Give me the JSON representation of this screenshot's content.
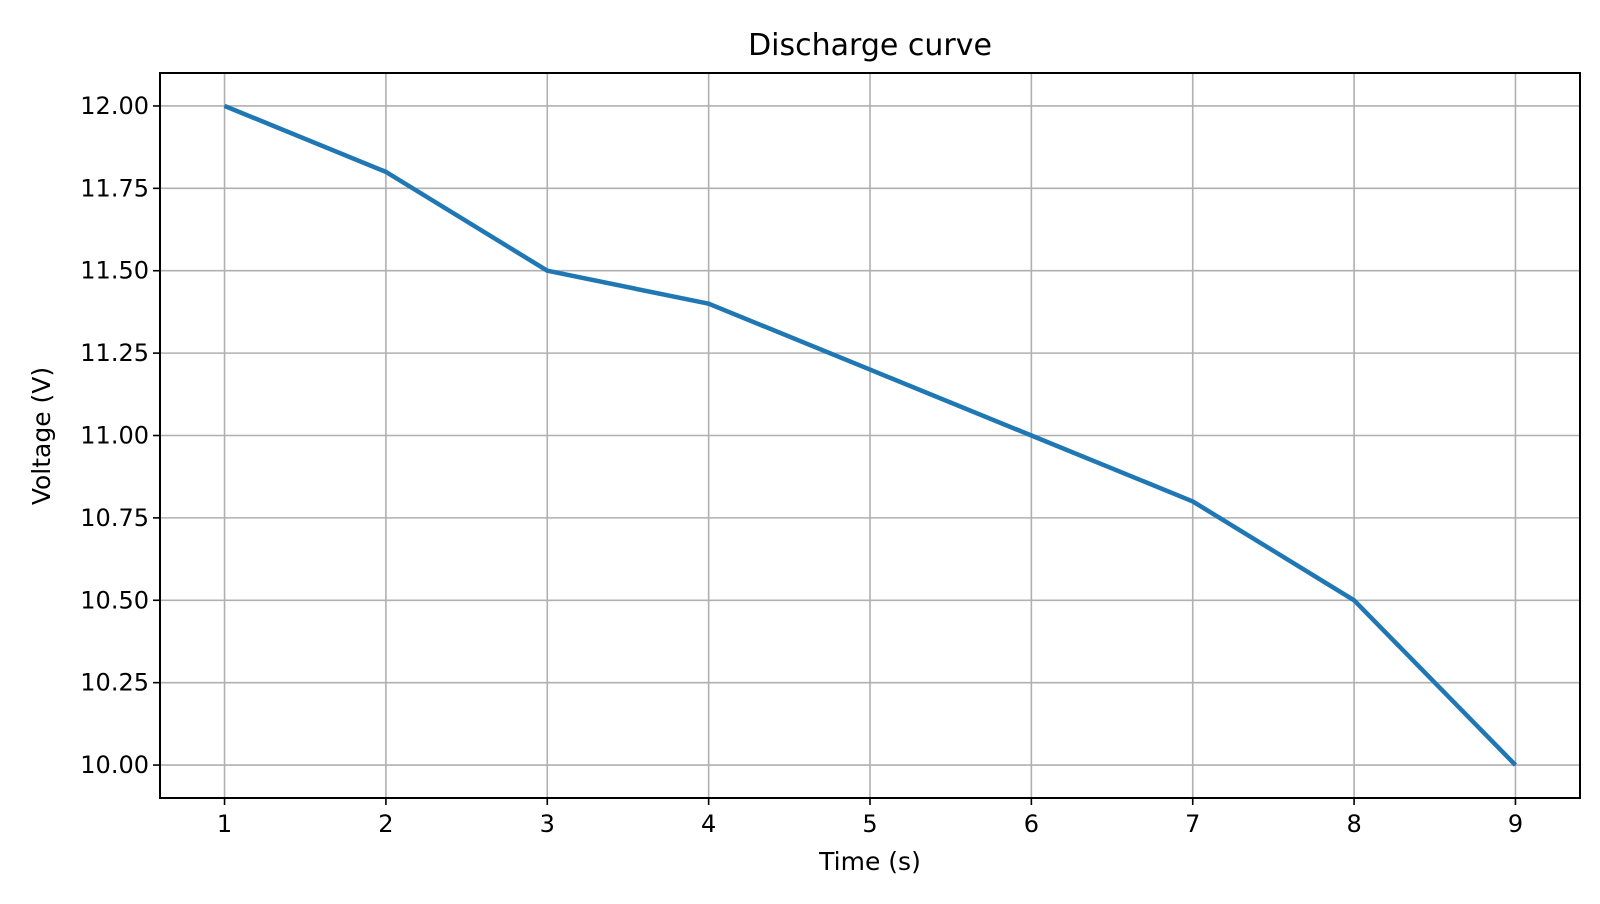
{
  "chart_data": {
    "type": "line",
    "title": "Discharge curve",
    "xlabel": "Time (s)",
    "ylabel": "Voltage (V)",
    "x": [
      1,
      2,
      3,
      4,
      5,
      6,
      7,
      8,
      9
    ],
    "series": [
      {
        "values": [
          12.0,
          11.8,
          11.5,
          11.4,
          11.2,
          11.0,
          10.8,
          10.5,
          10.0
        ],
        "color": "#1f77b4"
      }
    ],
    "xlim": [
      0.6,
      9.4
    ],
    "ylim": [
      9.9,
      12.1
    ],
    "x_ticks": [
      "1",
      "2",
      "3",
      "4",
      "5",
      "6",
      "7",
      "8",
      "9"
    ],
    "y_ticks": [
      "10.00",
      "10.25",
      "10.50",
      "10.75",
      "11.00",
      "11.25",
      "11.50",
      "11.75",
      "12.00"
    ],
    "grid": true,
    "grid_color": "#b0b0b0",
    "legend": "none"
  }
}
